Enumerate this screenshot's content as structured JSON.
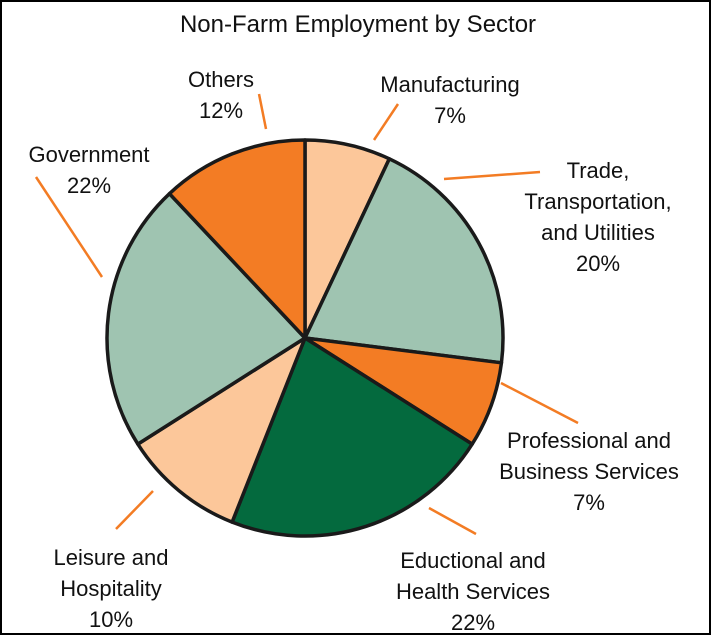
{
  "chart_data": {
    "type": "pie",
    "title": "Non-Farm Employment by Sector",
    "slices": [
      {
        "label_lines": [
          "Manufacturing"
        ],
        "value": 7,
        "value_label": "7%",
        "color": "#fcc79a"
      },
      {
        "label_lines": [
          "Trade,",
          "Transportation,",
          "and Utilities"
        ],
        "value": 20,
        "value_label": "20%",
        "color": "#9fc4b1"
      },
      {
        "label_lines": [
          "Professional and",
          "Business Services"
        ],
        "value": 7,
        "value_label": "7%",
        "color": "#f37c24"
      },
      {
        "label_lines": [
          "Eductional and",
          "Health Services"
        ],
        "value": 22,
        "value_label": "22%",
        "color": "#046a3e"
      },
      {
        "label_lines": [
          "Leisure and",
          "Hospitality"
        ],
        "value": 10,
        "value_label": "10%",
        "color": "#fcc79a"
      },
      {
        "label_lines": [
          "Government"
        ],
        "value": 22,
        "value_label": "22%",
        "color": "#9fc4b1"
      },
      {
        "label_lines": [
          "Others"
        ],
        "value": 12,
        "value_label": "12%",
        "color": "#f37c24"
      }
    ],
    "leader_color": "#f37c24",
    "outline_color": "#1a1a1a"
  }
}
